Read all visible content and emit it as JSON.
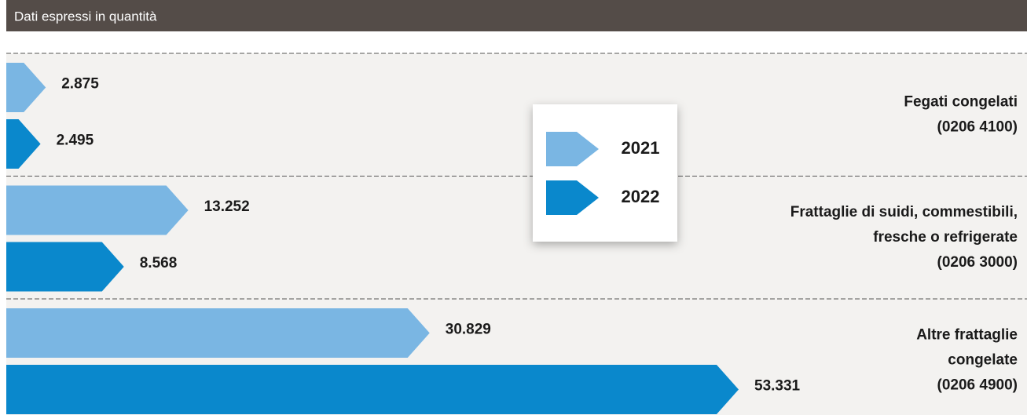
{
  "chart_data": {
    "type": "hbar-arrow",
    "subtitle": "Dati espressi in quantità",
    "categories": [
      [
        "Fegati congelati",
        "(0206 4100)"
      ],
      [
        "Frattaglie di suidi, commestibili,",
        "fresche o refrigerate",
        "(0206 3000)"
      ],
      [
        "Altre frattaglie",
        "congelate",
        "(0206 4900)"
      ]
    ],
    "series": [
      {
        "name": "2021",
        "color": "#7ab6e3",
        "values": [
          2875,
          13252,
          30829
        ],
        "value_labels": [
          "2.875",
          "13.252",
          "30.829"
        ]
      },
      {
        "name": "2022",
        "color": "#0a88cc",
        "values": [
          2495,
          8568,
          53331
        ],
        "value_labels": [
          "2.495",
          "8.568",
          "53.331"
        ]
      }
    ],
    "legend": "center"
  }
}
